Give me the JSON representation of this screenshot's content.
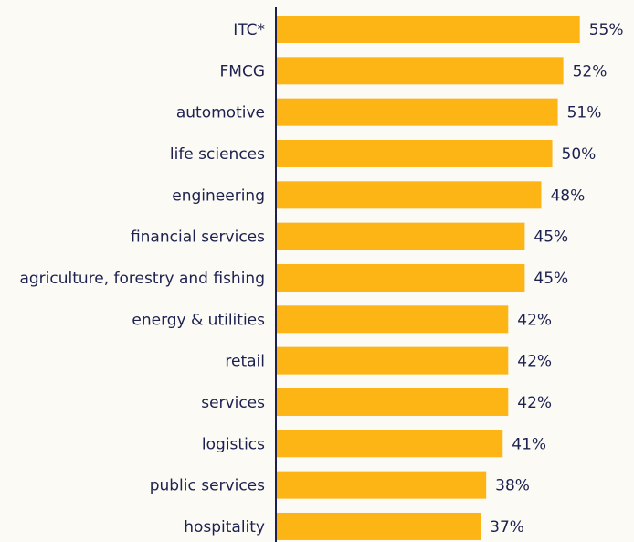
{
  "chart_data": {
    "type": "bar",
    "orientation": "horizontal",
    "categories": [
      "ITC*",
      "FMCG",
      "automotive",
      "life sciences",
      "engineering",
      "financial services",
      "agriculture, forestry and fishing",
      "energy & utilities",
      "retail",
      "services",
      "logistics",
      "public services",
      "hospitality"
    ],
    "values": [
      55,
      52,
      51,
      50,
      48,
      45,
      45,
      42,
      42,
      42,
      41,
      38,
      37
    ],
    "value_labels": [
      "55%",
      "52%",
      "51%",
      "50%",
      "48%",
      "45%",
      "45%",
      "42%",
      "42%",
      "42%",
      "41%",
      "38%",
      "37%"
    ],
    "color": "#fdb515",
    "xlim": [
      0,
      65
    ]
  }
}
